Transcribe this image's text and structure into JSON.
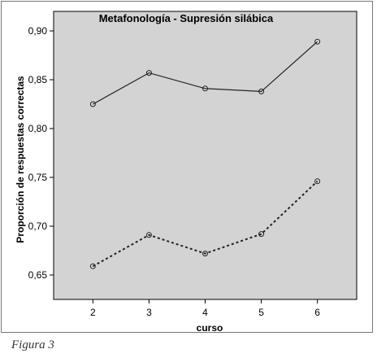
{
  "figure_caption": "Figura 3",
  "chart_data": {
    "type": "line",
    "title": "Metafonología - Supresión silábica",
    "xlabel": "curso",
    "ylabel": "Proporción de respuestas correctas",
    "x": [
      2,
      3,
      4,
      5,
      6
    ],
    "xlim": [
      1.3,
      6.7
    ],
    "ylim": [
      0.625,
      0.92
    ],
    "yticks": [
      "0,65",
      "0,70",
      "0,75",
      "0,80",
      "0,85",
      "0,90"
    ],
    "xticks": [
      "2",
      "3",
      "4",
      "5",
      "6"
    ],
    "grid": false,
    "background": "#d3d3d3",
    "series": [
      {
        "values": [
          0.825,
          0.857,
          0.841,
          0.838,
          0.889
        ],
        "style": "solid",
        "color": "#222222"
      },
      {
        "values": [
          0.659,
          0.691,
          0.672,
          0.692,
          0.746
        ],
        "style": "dotted",
        "color": "#222222"
      }
    ]
  }
}
